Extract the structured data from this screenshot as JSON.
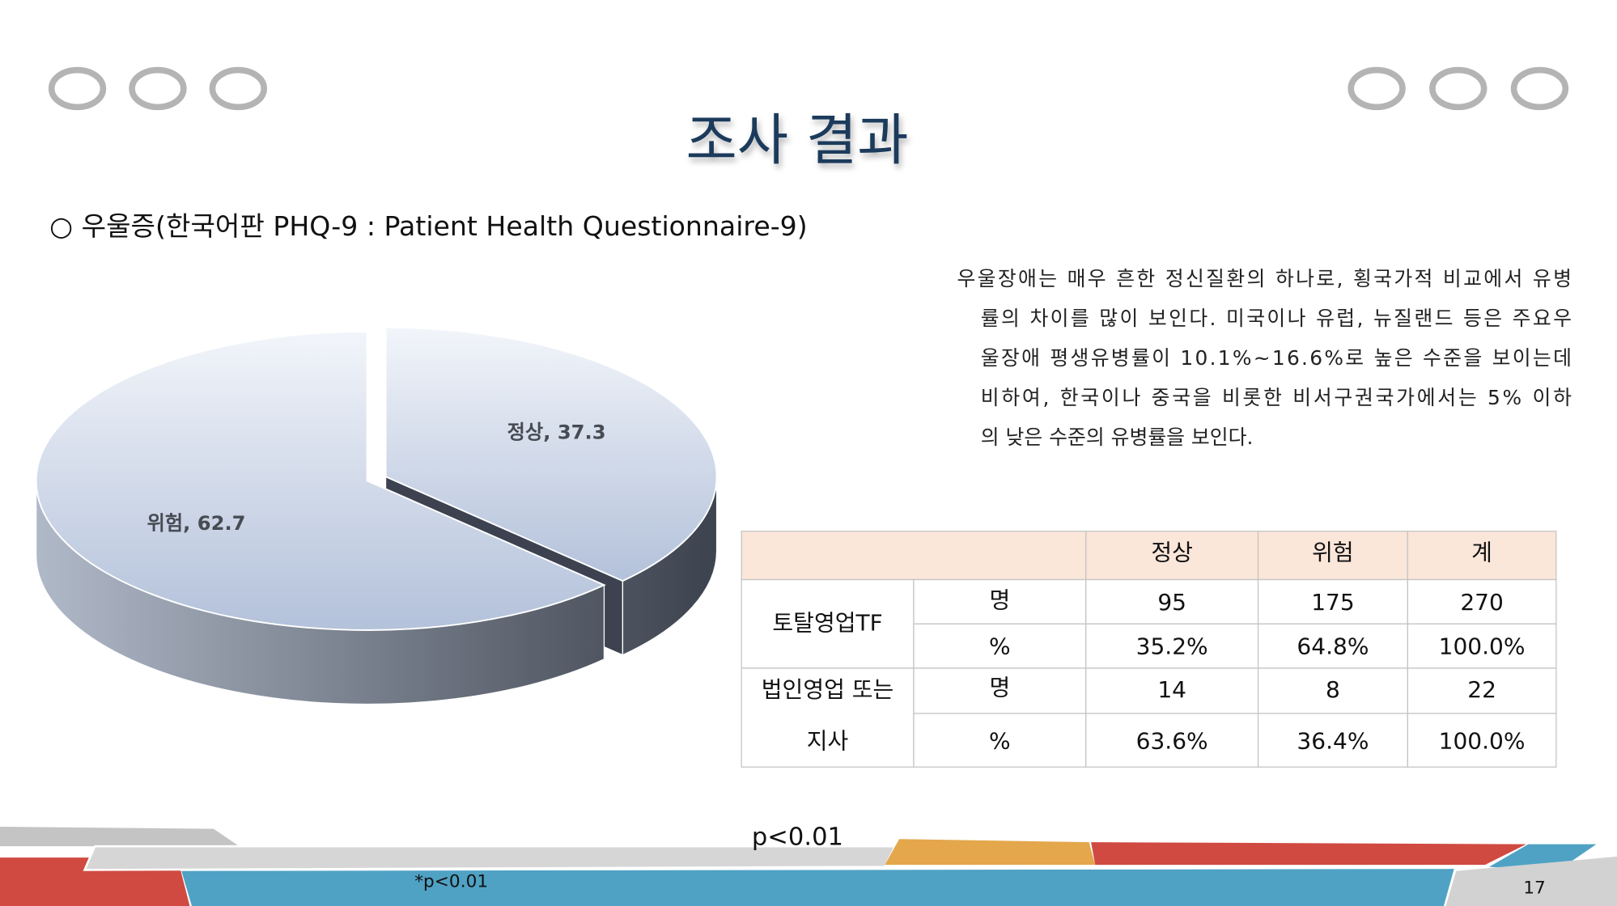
{
  "header": {
    "title": "조사 결과",
    "subtitle": "○ 우울증(한국어판 PHQ-9 : Patient Health Questionnaire-9)"
  },
  "chart_data": {
    "type": "pie",
    "categories": [
      "정상",
      "위험"
    ],
    "values": [
      37.3,
      62.7
    ],
    "value_labels": [
      "정상, 37.3",
      "위험, 62.7"
    ],
    "color": "#b3c1da"
  },
  "paragraph": {
    "lines": [
      "우울장애는 매우 흔한 정신질환의 하나로, 횡국가적 비교에서 유병",
      "률의 차이를 많이 보인다. 미국이나 유럽, 뉴질랜드 등은 주요우",
      "울장애 평생유병률이 10.1%~16.6%로 높은 수준을 보이는데",
      "비하여, 한국이나 중국을 비롯한 비서구권국가에서는 5% 이하",
      "의 낮은 수준의 유병률을 보인다."
    ]
  },
  "table": {
    "columns": [
      "정상",
      "위험",
      "계"
    ],
    "groups": [
      {
        "label": [
          "토탈영업TF"
        ],
        "rows": [
          {
            "unit": "명",
            "values": [
              95,
              175,
              270
            ]
          },
          {
            "unit": "%",
            "values": [
              "35.2%",
              "64.8%",
              "100.0%"
            ]
          }
        ]
      },
      {
        "label": [
          "법인영업 또는",
          "지사"
        ],
        "rows": [
          {
            "unit": "명",
            "values": [
              14,
              8,
              22
            ]
          },
          {
            "unit": "%",
            "values": [
              "63.6%",
              "36.4%",
              "100.0%"
            ]
          }
        ]
      }
    ]
  },
  "note": "p<0.01",
  "footnote": "*p<0.01",
  "page_number": "17"
}
